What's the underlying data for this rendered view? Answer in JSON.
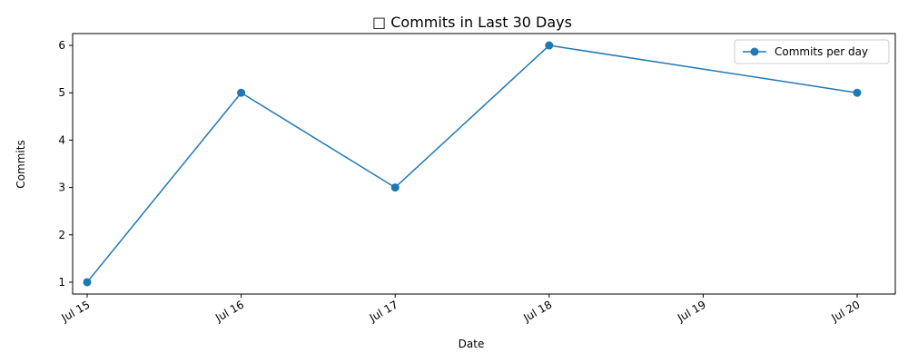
{
  "chart_data": {
    "type": "line",
    "title": "□ Commits in Last 30 Days",
    "xlabel": "Date",
    "ylabel": "Commits",
    "x_ticks": [
      "Jul 15",
      "Jul 16",
      "Jul 17",
      "Jul 18",
      "Jul 19",
      "Jul 20"
    ],
    "xlim": [
      "Jul 15",
      "Jul 20"
    ],
    "ylim": [
      0.75,
      6.25
    ],
    "y_ticks": [
      1,
      2,
      3,
      4,
      5,
      6
    ],
    "grid": false,
    "legend_position": "top-right",
    "color": "#1f77b4",
    "series": [
      {
        "name": "Commits per day",
        "x": [
          "Jul 15",
          "Jul 16",
          "Jul 17",
          "Jul 18",
          "Jul 20"
        ],
        "y": [
          1,
          5,
          3,
          6,
          5
        ]
      }
    ]
  }
}
